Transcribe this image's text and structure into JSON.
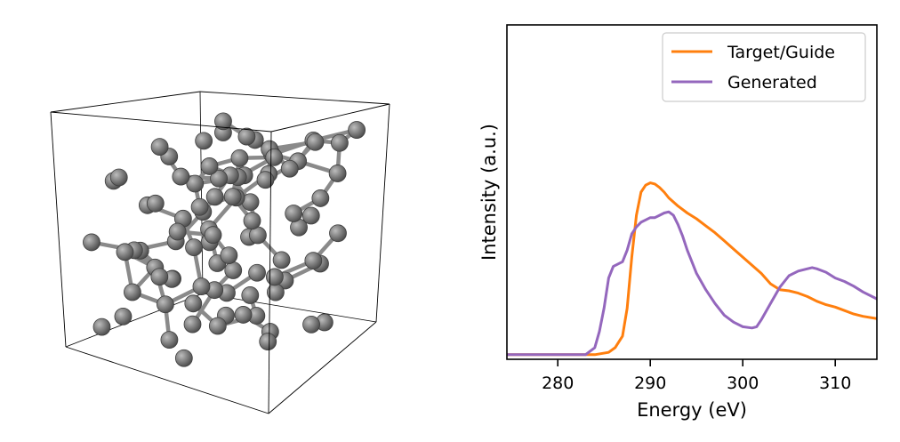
{
  "chart_data": [
    {
      "type": "scatter",
      "atoms": [
        [
          -0.88,
          0.92,
          0.9
        ],
        [
          -0.78,
          0.8,
          0.78
        ],
        [
          -0.6,
          0.85,
          0.62
        ],
        [
          -0.3,
          0.95,
          0.88
        ],
        [
          -0.05,
          0.9,
          0.55
        ],
        [
          0.2,
          0.92,
          0.8
        ],
        [
          0.45,
          0.95,
          0.6
        ],
        [
          0.7,
          0.88,
          0.85
        ],
        [
          -0.65,
          0.6,
          0.4
        ],
        [
          -0.4,
          0.72,
          0.3
        ],
        [
          -0.15,
          0.7,
          0.7
        ],
        [
          0.15,
          0.65,
          0.25
        ],
        [
          0.35,
          0.72,
          0.5
        ],
        [
          0.6,
          0.68,
          0.2
        ],
        [
          0.85,
          0.55,
          0.45
        ],
        [
          -0.85,
          0.35,
          -0.1
        ],
        [
          -0.55,
          0.4,
          0.1
        ],
        [
          -0.25,
          0.45,
          -0.2
        ],
        [
          0.05,
          0.38,
          0.4
        ],
        [
          0.3,
          0.3,
          0.05
        ],
        [
          0.55,
          0.4,
          -0.3
        ],
        [
          0.8,
          0.25,
          0.15
        ],
        [
          -0.75,
          0.1,
          -0.4
        ],
        [
          -0.45,
          0.15,
          0.5
        ],
        [
          -0.1,
          0.05,
          -0.5
        ],
        [
          0.2,
          0.12,
          0.6
        ],
        [
          0.45,
          0.02,
          -0.15
        ],
        [
          0.75,
          0.08,
          0.7
        ],
        [
          -0.9,
          -0.15,
          0.2
        ],
        [
          -0.6,
          -0.2,
          -0.6
        ],
        [
          -0.3,
          -0.1,
          0.1
        ],
        [
          0.0,
          -0.18,
          -0.3
        ],
        [
          0.25,
          -0.25,
          0.35
        ],
        [
          0.5,
          -0.15,
          -0.7
        ],
        [
          0.82,
          -0.22,
          -0.05
        ],
        [
          -0.7,
          -0.4,
          0.6
        ],
        [
          -0.4,
          -0.45,
          -0.35
        ],
        [
          -0.1,
          -0.38,
          0.55
        ],
        [
          0.15,
          -0.5,
          -0.1
        ],
        [
          0.4,
          -0.42,
          0.25
        ],
        [
          0.65,
          -0.48,
          -0.5
        ],
        [
          0.9,
          -0.4,
          0.4
        ],
        [
          -0.85,
          -0.65,
          -0.25
        ],
        [
          -0.55,
          -0.7,
          0.2
        ],
        [
          -0.25,
          -0.62,
          -0.75
        ],
        [
          0.05,
          -0.75,
          0.3
        ],
        [
          0.3,
          -0.68,
          -0.4
        ],
        [
          0.6,
          -0.72,
          0.15
        ],
        [
          0.85,
          -0.8,
          -0.7
        ],
        [
          -0.5,
          -0.9,
          0.8
        ],
        [
          -0.2,
          -0.88,
          -0.1
        ],
        [
          0.2,
          -0.92,
          0.7
        ],
        [
          0.5,
          -0.95,
          -0.2
        ],
        [
          0.92,
          -0.95,
          0.3
        ],
        [
          -0.95,
          0.65,
          -0.7
        ],
        [
          -0.35,
          0.55,
          -0.85
        ],
        [
          0.1,
          0.8,
          -0.6
        ],
        [
          0.4,
          0.5,
          -0.9
        ],
        [
          0.95,
          0.75,
          -0.4
        ],
        [
          -0.65,
          -0.05,
          0.85
        ],
        [
          -0.2,
          0.25,
          0.9
        ],
        [
          0.3,
          -0.05,
          0.95
        ],
        [
          0.7,
          -0.3,
          0.9
        ],
        [
          -0.92,
          -0.45,
          -0.85
        ],
        [
          0.0,
          -0.3,
          -0.92
        ],
        [
          0.35,
          -0.85,
          -0.85
        ],
        [
          0.72,
          0.45,
          0.95
        ],
        [
          -0.45,
          0.95,
          -0.3
        ],
        [
          0.15,
          0.95,
          -0.05
        ],
        [
          0.6,
          0.2,
          0.4
        ],
        [
          -0.15,
          -0.95,
          0.45
        ],
        [
          0.8,
          -0.62,
          0.6
        ],
        [
          -0.78,
          0.22,
          0.55
        ],
        [
          0.05,
          0.52,
          -0.4
        ],
        [
          -0.35,
          -0.25,
          0.8
        ],
        [
          0.55,
          -0.55,
          0.85
        ],
        [
          -0.6,
          0.78,
          -0.15
        ],
        [
          0.25,
          0.45,
          0.15
        ],
        [
          -0.05,
          -0.55,
          -0.6
        ],
        [
          0.92,
          0.05,
          -0.75
        ],
        [
          -0.72,
          -0.85,
          -0.5
        ],
        [
          0.45,
          0.82,
          0.25
        ],
        [
          -0.28,
          0.88,
          0.2
        ],
        [
          0.68,
          -0.05,
          -0.45
        ],
        [
          -0.5,
          -0.55,
          0.35
        ],
        [
          0.1,
          0.2,
          -0.75
        ],
        [
          0.38,
          -0.3,
          -0.45
        ],
        [
          -0.82,
          0.48,
          0.72
        ],
        [
          0.62,
          0.62,
          0.65
        ],
        [
          -0.12,
          -0.8,
          0.95
        ]
      ]
    },
    {
      "type": "line",
      "xlabel": "Energy (eV)",
      "ylabel": "Intensity (a.u.)",
      "xlim": [
        274.5,
        314.5
      ],
      "ylim": [
        -0.02,
        1.42
      ],
      "xticks": [
        280,
        290,
        300,
        310
      ],
      "legend_position": "top-right",
      "series": [
        {
          "name": "Target/Guide",
          "color": "#ff7f0e",
          "x": [
            274.5,
            284,
            285.5,
            286.2,
            287,
            287.5,
            288,
            288.5,
            289,
            289.5,
            290,
            290.5,
            291,
            291.5,
            292,
            293,
            294,
            295,
            296,
            297,
            298,
            299,
            300,
            301,
            302,
            303,
            304,
            305,
            306,
            307,
            308,
            309,
            310,
            311,
            312,
            313,
            314.5
          ],
          "y": [
            0.0,
            0.0,
            0.01,
            0.03,
            0.08,
            0.2,
            0.42,
            0.6,
            0.7,
            0.73,
            0.74,
            0.735,
            0.72,
            0.7,
            0.675,
            0.64,
            0.61,
            0.585,
            0.555,
            0.525,
            0.49,
            0.455,
            0.42,
            0.385,
            0.35,
            0.305,
            0.28,
            0.275,
            0.265,
            0.25,
            0.23,
            0.215,
            0.205,
            0.19,
            0.175,
            0.165,
            0.155
          ]
        },
        {
          "name": "Generated",
          "color": "#9467bd",
          "x": [
            274.5,
            283,
            284,
            284.5,
            285,
            285.5,
            286,
            286.5,
            287,
            287.5,
            288,
            288.5,
            289,
            289.5,
            290,
            290.5,
            291,
            291.5,
            292,
            292.5,
            293,
            293.5,
            294,
            294.5,
            295,
            296,
            297,
            298,
            299,
            300,
            301,
            301.5,
            302,
            303,
            304,
            305,
            306,
            307,
            307.5,
            308,
            309,
            310,
            311,
            312,
            313,
            314.5
          ],
          "y": [
            0.0,
            0.0,
            0.03,
            0.1,
            0.2,
            0.33,
            0.38,
            0.39,
            0.4,
            0.45,
            0.52,
            0.55,
            0.57,
            0.58,
            0.59,
            0.59,
            0.6,
            0.61,
            0.615,
            0.6,
            0.56,
            0.51,
            0.45,
            0.4,
            0.35,
            0.28,
            0.22,
            0.17,
            0.14,
            0.12,
            0.115,
            0.12,
            0.15,
            0.22,
            0.29,
            0.34,
            0.36,
            0.37,
            0.375,
            0.37,
            0.355,
            0.33,
            0.315,
            0.295,
            0.27,
            0.24
          ]
        }
      ]
    }
  ]
}
